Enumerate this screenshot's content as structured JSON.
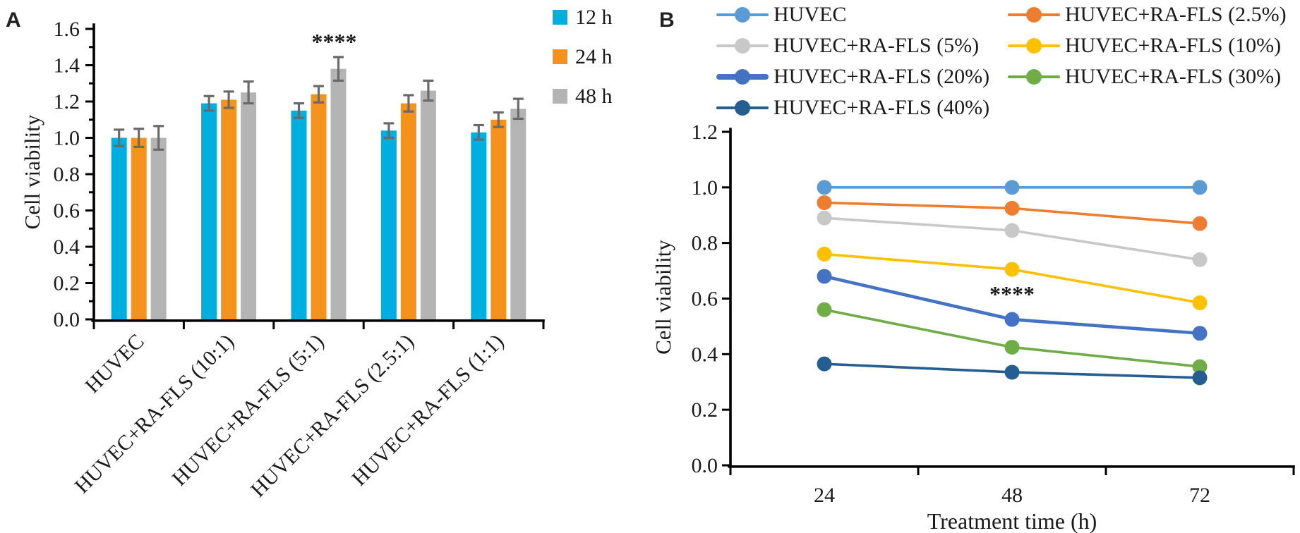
{
  "panels": {
    "a": {
      "label": "A"
    },
    "b": {
      "label": "B"
    }
  },
  "chart_data": [
    {
      "id": "A",
      "type": "bar",
      "title": "",
      "xlabel": "",
      "ylabel": "Cell viability",
      "ylim": [
        0,
        1.6
      ],
      "ytick_step": 0.2,
      "ytick_minor_step": 0.1,
      "grid": false,
      "legend_position": "top-right-outside",
      "categories": [
        "HUVEC",
        "HUVEC+RA-FLS (10:1)",
        "HUVEC+RA-FLS (5:1)",
        "HUVEC+RA-FLS (2.5:1)",
        "HUVEC+RA-FLS (1:1)"
      ],
      "series": [
        {
          "name": "12 h",
          "color": "#00AEE0",
          "values": [
            1.0,
            1.19,
            1.15,
            1.04,
            1.03
          ],
          "errors": [
            0.045,
            0.04,
            0.04,
            0.04,
            0.04
          ]
        },
        {
          "name": "24 h",
          "color": "#F5921D",
          "values": [
            1.0,
            1.21,
            1.24,
            1.19,
            1.1
          ],
          "errors": [
            0.05,
            0.045,
            0.045,
            0.045,
            0.04
          ]
        },
        {
          "name": "48 h",
          "color": "#B4B4B4",
          "values": [
            1.0,
            1.25,
            1.38,
            1.26,
            1.16
          ],
          "errors": [
            0.065,
            0.06,
            0.065,
            0.055,
            0.055
          ]
        }
      ],
      "error_bar_color": "#6a6a6a",
      "annotation": {
        "text": "****",
        "category_index": 2,
        "series_index": 2
      }
    },
    {
      "id": "B",
      "type": "line",
      "title": "",
      "xlabel": "Treatment time (h)",
      "ylabel": "Cell viability",
      "ylim": [
        0,
        1.2
      ],
      "ytick_step": 0.2,
      "grid": false,
      "legend_position": "top-outside-two-columns",
      "x": [
        24,
        48,
        72
      ],
      "series": [
        {
          "name": "HUVEC",
          "color": "#5B9BD5",
          "values": [
            1.0,
            1.0,
            1.0
          ]
        },
        {
          "name": "HUVEC+RA-FLS (2.5%)",
          "color": "#ED7D31",
          "values": [
            0.945,
            0.925,
            0.87
          ]
        },
        {
          "name": "HUVEC+RA-FLS (5%)",
          "color": "#C8C8C8",
          "values": [
            0.89,
            0.845,
            0.74
          ]
        },
        {
          "name": "HUVEC+RA-FLS (10%)",
          "color": "#FFC000",
          "values": [
            0.76,
            0.705,
            0.585
          ]
        },
        {
          "name": "HUVEC+RA-FLS (20%)",
          "color": "#4472C4",
          "values": [
            0.68,
            0.525,
            0.475
          ],
          "thick": true
        },
        {
          "name": "HUVEC+RA-FLS (30%)",
          "color": "#70AD47",
          "values": [
            0.56,
            0.425,
            0.355
          ]
        },
        {
          "name": "HUVEC+RA-FLS (40%)",
          "color": "#255E91",
          "values": [
            0.365,
            0.335,
            0.315
          ]
        }
      ],
      "annotation": {
        "text": "****",
        "x": 48,
        "series_index": 4
      }
    }
  ]
}
